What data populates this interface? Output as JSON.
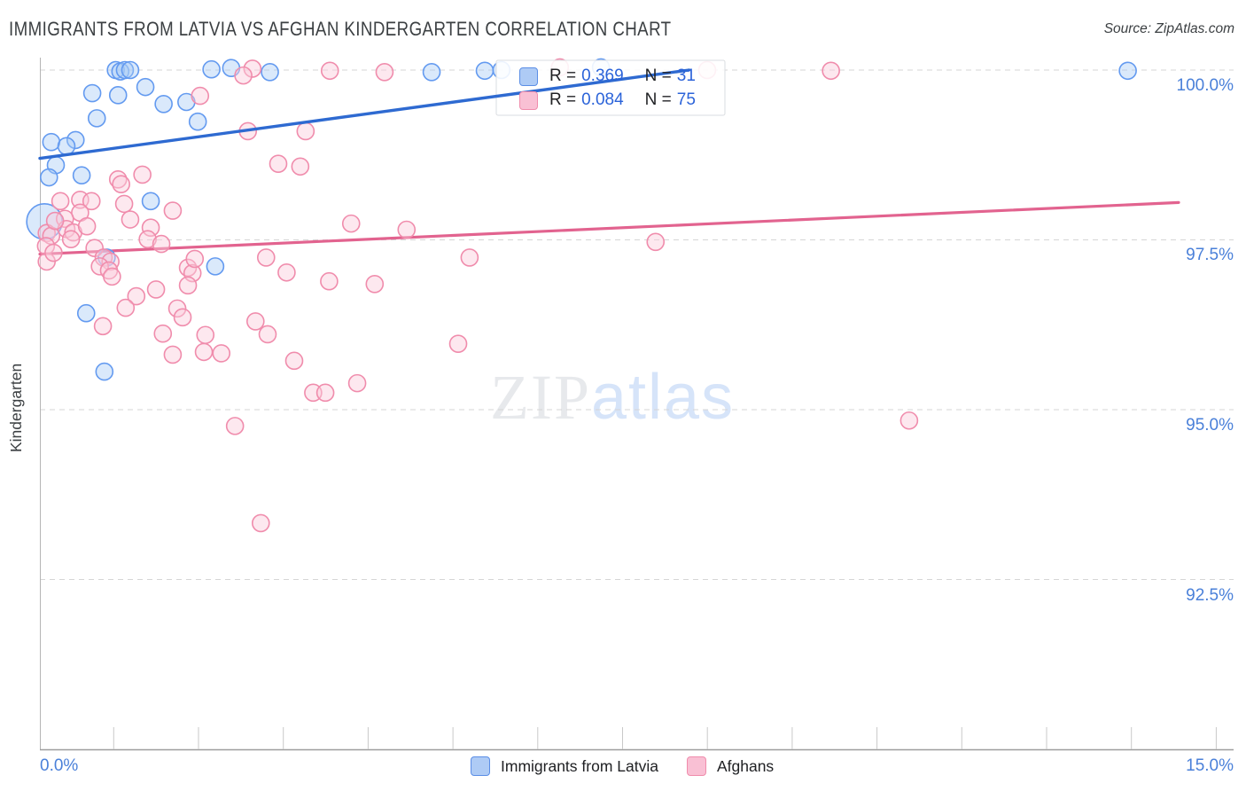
{
  "header": {
    "title": "IMMIGRANTS FROM LATVIA VS AFGHAN KINDERGARTEN CORRELATION CHART",
    "source": "Source: ZipAtlas.com"
  },
  "watermark": {
    "zip": "ZIP",
    "atlas": "atlas"
  },
  "axes": {
    "y_label": "Kindergarten",
    "x_min_label": "0.0%",
    "x_max_label": "15.0%",
    "y_tick_labels": [
      "100.0%",
      "97.5%",
      "95.0%",
      "92.5%"
    ]
  },
  "legend_box": {
    "rows": [
      {
        "series": "latvia",
        "r_label": "R =",
        "r_value": "0.369",
        "n_label": "N =",
        "n_value": "31"
      },
      {
        "series": "afghans",
        "r_label": "R =",
        "r_value": "0.084",
        "n_label": "N =",
        "n_value": "75"
      }
    ]
  },
  "bottom_legend": [
    {
      "label": "Immigrants from Latvia"
    },
    {
      "label": "Afghans"
    }
  ],
  "colors": {
    "blue_stroke": "#639af0",
    "blue_fill": "rgba(168,203,246,0.42)",
    "blue_trend": "#2e6ad1",
    "pink_stroke": "#f08cac",
    "pink_fill": "rgba(250,205,220,0.45)",
    "pink_trend": "#e2638f",
    "gridline": "#d5d5d5",
    "axis": "#9e9e9e",
    "tick": "#c9c9c9",
    "axis_label_blue": "#4a80d9",
    "legend_value_blue": "#2b63d9",
    "legend_swatch_blue_fill": "#aecbf5",
    "legend_swatch_blue_border": "#5b8ee6",
    "legend_swatch_pink_fill": "#f9c0d4",
    "legend_swatch_pink_border": "#f08cac"
  },
  "chart_data": {
    "type": "scatter",
    "title": "IMMIGRANTS FROM LATVIA VS AFGHAN KINDERGARTEN CORRELATION CHART",
    "xlabel": "Immigrants from Latvia (%)",
    "ylabel": "Kindergarten (%)",
    "xlim": [
      0,
      15
    ],
    "ylim": [
      88.9,
      100.2
    ],
    "y_gridlines": [
      100.0,
      97.5,
      95.0,
      92.5
    ],
    "grid": "dashed-horizontal",
    "legend_position": "top-right-inset",
    "series": [
      {
        "name": "Immigrants from Latvia",
        "r": 0.369,
        "n": 31,
        "trend": {
          "x1": 0,
          "y1": 98.7,
          "x2": 8.55,
          "y2": 100.0
        },
        "points": [
          [
            1.0,
            100.0
          ],
          [
            1.06,
            99.98
          ],
          [
            1.12,
            100.0
          ],
          [
            1.19,
            100.0
          ],
          [
            2.26,
            100.01
          ],
          [
            2.52,
            100.03
          ],
          [
            3.03,
            99.97
          ],
          [
            5.16,
            99.97
          ],
          [
            5.86,
            99.99
          ],
          [
            6.08,
            100.0
          ],
          [
            7.39,
            100.04
          ],
          [
            14.33,
            99.99
          ],
          [
            0.69,
            99.66
          ],
          [
            1.03,
            99.63
          ],
          [
            1.39,
            99.75
          ],
          [
            1.63,
            99.5
          ],
          [
            0.75,
            99.29
          ],
          [
            1.93,
            99.53
          ],
          [
            2.08,
            99.24
          ],
          [
            0.15,
            98.94
          ],
          [
            0.47,
            98.97
          ],
          [
            0.35,
            98.88
          ],
          [
            0.21,
            98.6
          ],
          [
            0.12,
            98.42
          ],
          [
            0.55,
            98.45
          ],
          [
            0.06,
            97.77,
            20
          ],
          [
            0.88,
            97.24
          ],
          [
            0.61,
            96.42
          ],
          [
            0.85,
            95.56
          ],
          [
            1.46,
            98.07
          ],
          [
            2.31,
            97.11
          ]
        ]
      },
      {
        "name": "Afghans",
        "r": 0.084,
        "n": 75,
        "trend": {
          "x1": 0,
          "y1": 97.29,
          "x2": 15,
          "y2": 98.05
        },
        "points": [
          [
            2.8,
            100.02
          ],
          [
            3.82,
            99.99
          ],
          [
            4.54,
            99.97
          ],
          [
            6.85,
            100.04
          ],
          [
            8.79,
            100.0
          ],
          [
            10.42,
            99.99
          ],
          [
            2.68,
            99.92
          ],
          [
            2.11,
            99.62
          ],
          [
            2.74,
            99.1
          ],
          [
            3.5,
            99.1
          ],
          [
            3.14,
            98.62
          ],
          [
            3.43,
            98.58
          ],
          [
            1.35,
            98.46
          ],
          [
            1.03,
            98.39
          ],
          [
            1.07,
            98.32
          ],
          [
            0.27,
            98.07
          ],
          [
            0.53,
            98.09
          ],
          [
            0.68,
            98.07
          ],
          [
            1.11,
            98.03
          ],
          [
            1.75,
            97.93
          ],
          [
            1.19,
            97.8
          ],
          [
            0.53,
            97.9
          ],
          [
            0.33,
            97.81
          ],
          [
            1.46,
            97.68
          ],
          [
            0.35,
            97.66
          ],
          [
            0.44,
            97.61
          ],
          [
            0.09,
            97.6
          ],
          [
            0.15,
            97.56
          ],
          [
            0.41,
            97.51
          ],
          [
            1.42,
            97.51
          ],
          [
            0.08,
            97.41
          ],
          [
            1.6,
            97.44
          ],
          [
            0.72,
            97.38
          ],
          [
            0.84,
            97.24
          ],
          [
            0.93,
            97.18
          ],
          [
            0.09,
            97.18
          ],
          [
            0.2,
            97.78
          ],
          [
            0.62,
            97.7
          ],
          [
            0.18,
            97.31
          ],
          [
            0.79,
            97.11
          ],
          [
            0.91,
            97.05
          ],
          [
            0.95,
            96.96
          ],
          [
            1.95,
            97.09
          ],
          [
            2.01,
            97.01
          ],
          [
            2.04,
            97.22
          ],
          [
            1.95,
            96.83
          ],
          [
            1.53,
            96.77
          ],
          [
            1.27,
            96.67
          ],
          [
            1.13,
            96.5
          ],
          [
            1.81,
            96.49
          ],
          [
            1.88,
            96.36
          ],
          [
            0.83,
            96.23
          ],
          [
            1.62,
            96.12
          ],
          [
            2.18,
            96.1
          ],
          [
            3.0,
            96.11
          ],
          [
            1.75,
            95.81
          ],
          [
            2.16,
            95.85
          ],
          [
            2.39,
            95.83
          ],
          [
            2.84,
            96.3
          ],
          [
            2.98,
            97.24
          ],
          [
            3.25,
            97.02
          ],
          [
            3.35,
            95.72
          ],
          [
            3.6,
            95.25
          ],
          [
            3.76,
            95.25
          ],
          [
            3.81,
            96.89
          ],
          [
            4.18,
            95.39
          ],
          [
            4.41,
            96.85
          ],
          [
            5.51,
            95.97
          ],
          [
            5.66,
            97.24
          ],
          [
            2.57,
            94.76
          ],
          [
            2.91,
            93.33
          ],
          [
            4.1,
            97.74
          ],
          [
            4.83,
            97.65
          ],
          [
            8.11,
            97.47
          ],
          [
            11.45,
            94.84
          ]
        ]
      }
    ]
  }
}
